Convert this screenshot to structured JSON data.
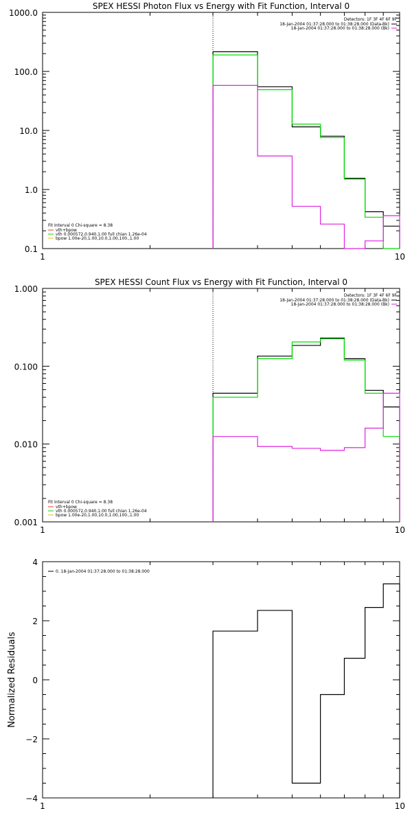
{
  "colors": {
    "black": "#000000",
    "green": "#00dd00",
    "magenta": "#dd22dd",
    "red": "#ff3030",
    "yellow": "#e0c000",
    "background": "#ffffff"
  },
  "chart_data": [
    {
      "type": "line",
      "title": "SPEX HESSI Photon Flux vs Energy with Fit Function, Interval 0",
      "xlabel": "",
      "ylabel": "",
      "xscale": "log",
      "yscale": "log",
      "xlim": [
        1,
        10
      ],
      "ylim": [
        0.1,
        1000
      ],
      "x_ticks": [
        {
          "v": 1,
          "label": "1"
        },
        {
          "v": 10,
          "label": "10"
        }
      ],
      "y_ticks": [
        {
          "v": 0.1,
          "label": "0.1"
        },
        {
          "v": 1,
          "label": "1.0"
        },
        {
          "v": 10,
          "label": "10.0"
        },
        {
          "v": 100,
          "label": "100.0"
        },
        {
          "v": 1000,
          "label": "1000.0"
        }
      ],
      "vline_x": 3,
      "bin_edges": [
        3,
        4,
        5,
        6,
        7,
        8,
        9,
        10
      ],
      "series": [
        {
          "color": "black",
          "values": [
            215,
            55,
            11.5,
            8.0,
            1.55,
            0.42,
            0.24
          ]
        },
        {
          "color": "green",
          "values": [
            190,
            49,
            12.8,
            7.6,
            1.5,
            0.34,
            0.095
          ]
        },
        {
          "color": "magenta",
          "values": [
            58,
            3.7,
            0.52,
            0.26,
            0.1,
            0.135,
            0.36
          ]
        }
      ],
      "legend_top": {
        "position": "top-right",
        "header": "Detectors: 1F 3F 4F 6F 9F",
        "entries": [
          {
            "label": "18-Jan-2004 01:37:28.000 to 01:38:28.000 (Data-Bk)",
            "color": "black"
          },
          {
            "label": "18-Jan-2004 01:37:28.000 to 01:38:28.000 (Bk)",
            "color": "magenta"
          }
        ]
      },
      "legend_bottom": {
        "position": "bottom-left",
        "header": "Fit Interval 0   Chi-square = 8.38",
        "entries": [
          {
            "label": "vth+bpow",
            "color": "red"
          },
          {
            "label": "vth 0.000572,0.940,1.00  full chian 1.26e-04",
            "color": "green"
          },
          {
            "label": "bpow 1.00e-20,1.00,10.0,1.00,100.,1.00",
            "color": "yellow"
          }
        ]
      }
    },
    {
      "type": "line",
      "title": "SPEX HESSI Count Flux vs Energy with Fit Function, Interval 0",
      "xlabel": "",
      "ylabel": "",
      "xscale": "log",
      "yscale": "log",
      "xlim": [
        1,
        10
      ],
      "ylim": [
        0.001,
        1
      ],
      "x_ticks": [
        {
          "v": 1,
          "label": "1"
        },
        {
          "v": 10,
          "label": "10"
        }
      ],
      "y_ticks": [
        {
          "v": 0.001,
          "label": "0.001"
        },
        {
          "v": 0.01,
          "label": "0.010"
        },
        {
          "v": 0.1,
          "label": "0.100"
        },
        {
          "v": 1,
          "label": "1.000"
        }
      ],
      "vline_x": 3,
      "bin_edges": [
        3,
        4,
        5,
        6,
        7,
        8,
        9,
        10
      ],
      "series": [
        {
          "color": "black",
          "values": [
            0.045,
            0.135,
            0.185,
            0.23,
            0.125,
            0.049,
            0.03
          ]
        },
        {
          "color": "green",
          "values": [
            0.04,
            0.125,
            0.205,
            0.225,
            0.12,
            0.045,
            0.0125
          ]
        },
        {
          "color": "magenta",
          "values": [
            0.0125,
            0.0093,
            0.0088,
            0.0083,
            0.009,
            0.016,
            0.045
          ]
        }
      ],
      "legend_top": {
        "position": "top-right",
        "header": "Detectors: 1F 3F 4F 6F 9F",
        "entries": [
          {
            "label": "18-Jan-2004 01:37:28.000 to 01:38:28.000 (Data-Bk)",
            "color": "black"
          },
          {
            "label": "18-Jan-2004 01:37:28.000 to 01:38:28.000 (Bk)",
            "color": "magenta"
          }
        ]
      },
      "legend_bottom": {
        "position": "bottom-left",
        "header": "Fit Interval 0   Chi-square = 8.38",
        "entries": [
          {
            "label": "vth+bpow",
            "color": "red"
          },
          {
            "label": "vth 0.000572,0.940,1.00  full chian 1.26e-04",
            "color": "green"
          },
          {
            "label": "bpow 1.00e-20,1.00,10.0,1.00,100.,1.00",
            "color": "yellow"
          }
        ]
      }
    },
    {
      "type": "line",
      "title": "",
      "xlabel": "",
      "ylabel": "Normalized Residuals",
      "xscale": "log",
      "yscale": "linear",
      "xlim": [
        1,
        10
      ],
      "ylim": [
        -4,
        4
      ],
      "x_ticks": [
        {
          "v": 1,
          "label": "1"
        },
        {
          "v": 10,
          "label": "10"
        }
      ],
      "y_ticks": [
        {
          "v": -4,
          "label": "−4"
        },
        {
          "v": -2,
          "label": "−2"
        },
        {
          "v": 0,
          "label": "0"
        },
        {
          "v": 2,
          "label": "2"
        },
        {
          "v": 4,
          "label": "4"
        }
      ],
      "bin_edges": [
        3,
        4,
        5,
        6,
        7,
        8,
        9,
        10
      ],
      "series": [
        {
          "color": "black",
          "values": [
            1.65,
            2.35,
            -3.5,
            -0.5,
            0.73,
            2.45,
            3.25
          ]
        }
      ],
      "legend_top": {
        "position": "top-left",
        "header": "",
        "entries": [
          {
            "label": "0. 18-Jan-2004 01:37:28.000 to 01:38:28.000",
            "color": "black"
          }
        ]
      }
    }
  ]
}
